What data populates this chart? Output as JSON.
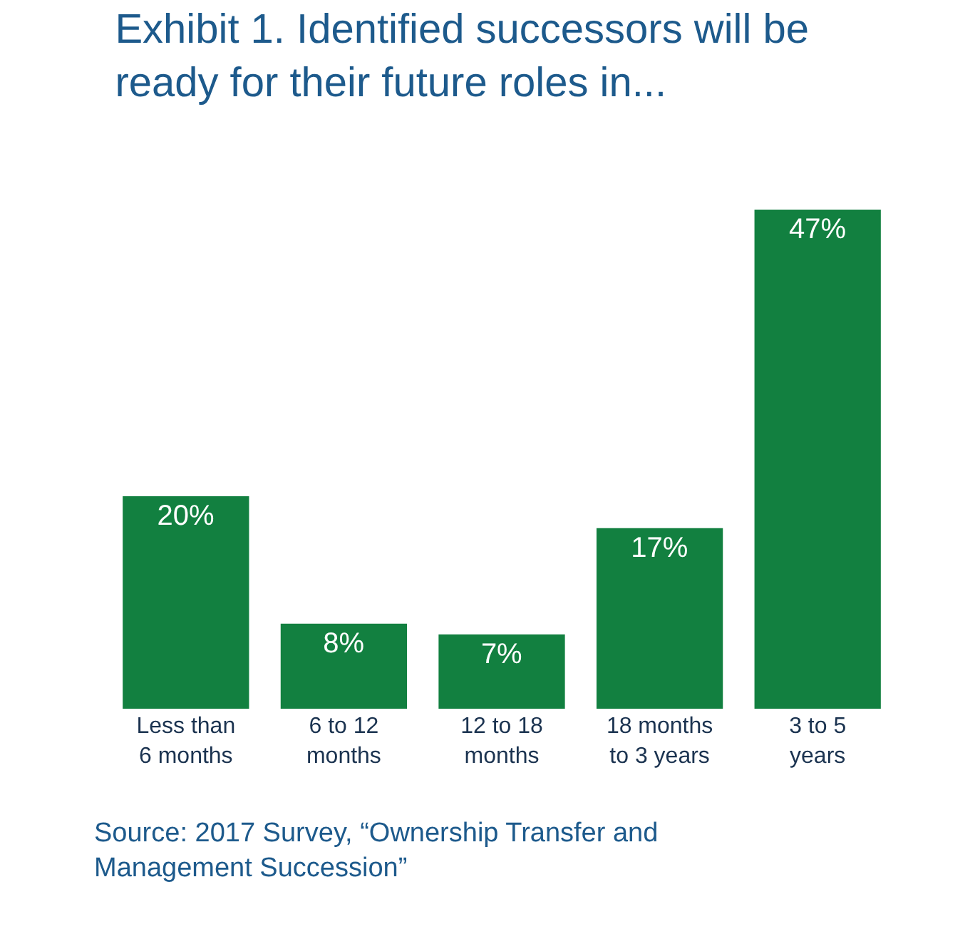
{
  "chart_data": {
    "type": "bar",
    "title": "Exhibit 1. Identified successors will be ready for their future roles in...",
    "categories": [
      "Less than 6 months",
      "6 to 12 months",
      "12 to 18 months",
      "18 months to 3 years",
      "3 to 5 years"
    ],
    "values": [
      20,
      8,
      7,
      17,
      47
    ],
    "color": "#128040",
    "value_labels": [
      "20%",
      "8%",
      "7%",
      "17%",
      "47%"
    ],
    "annotations": [
      "Source: 2017 Survey, “Ownership Transfer and Management Succession”"
    ]
  }
}
